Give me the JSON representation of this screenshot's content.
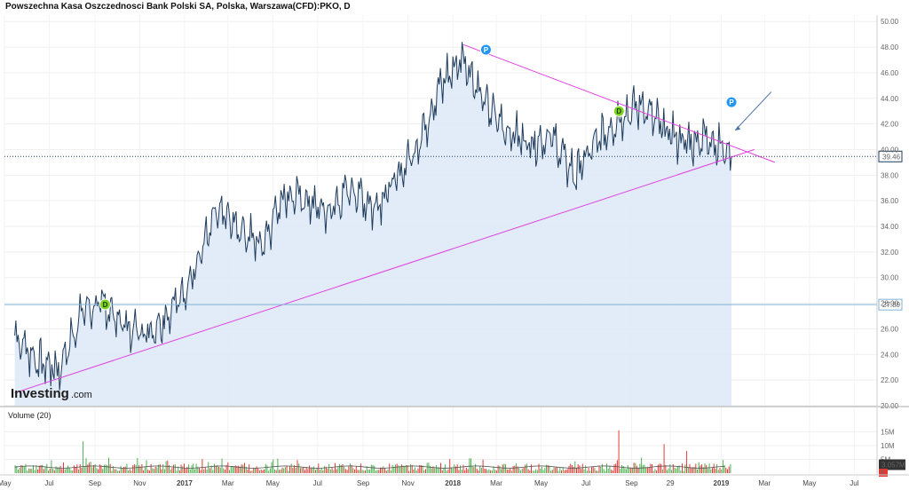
{
  "title": "Powszechna Kasa Oszczednosci Bank Polski SA, Polska, Warszawa(CFD):PKO, D",
  "logo": {
    "main": "Investing",
    "suffix": ".com"
  },
  "volume_label": "Volume (20)",
  "colors": {
    "price_line": "#1f3b5c",
    "area_fill": "#dce9f7",
    "trendline": "#e040e0",
    "current_price_line": "#1f3b5c",
    "level_line": "#7fb3d5",
    "vol_up": "#4caf50",
    "vol_down": "#e53935",
    "dividend": "#7ed321",
    "pattern": "#2196f3"
  },
  "chart_data": [
    {
      "type": "area",
      "title": "Powszechna Kasa Oszczednosci Bank Polski SA, Polska, Warszawa(CFD):PKO, D",
      "xlabel": "",
      "ylabel": "",
      "x_tick_labels": [
        "May",
        "Jul",
        "Sep",
        "Nov",
        "2017",
        "Mar",
        "May",
        "Jul",
        "Sep",
        "Nov",
        "2018",
        "Mar",
        "May",
        "Jul",
        "Sep",
        "29",
        "2019",
        "Mar",
        "May",
        "Jul"
      ],
      "y_tick_labels": [
        "20.00",
        "22.00",
        "24.00",
        "26.00",
        "28.00",
        "30.00",
        "32.00",
        "34.00",
        "36.00",
        "38.00",
        "40.00",
        "42.00",
        "44.00",
        "46.00",
        "48.00",
        "50.00"
      ],
      "ylim": [
        20,
        50.5
      ],
      "grid": true,
      "series": [
        {
          "x": [
            "2016-05",
            "2016-06",
            "2016-07",
            "2016-08",
            "2016-09",
            "2016-10",
            "2016-11",
            "2016-12",
            "2017-01",
            "2017-02",
            "2017-03",
            "2017-04",
            "2017-05",
            "2017-06",
            "2017-07",
            "2017-08",
            "2017-09",
            "2017-10",
            "2017-11",
            "2017-12",
            "2018-01",
            "2018-02",
            "2018-03",
            "2018-04",
            "2018-05",
            "2018-06",
            "2018-07",
            "2018-08",
            "2018-09",
            "2018-10",
            "2018-11",
            "2018-12",
            "2019-01"
          ],
          "values": [
            25.5,
            23.5,
            22.8,
            27.5,
            27.8,
            26.0,
            25.8,
            27.5,
            30.5,
            35.2,
            34.0,
            32.5,
            36.5,
            36.0,
            35.0,
            37.0,
            35.5,
            37.5,
            40.5,
            45.0,
            47.2,
            43.5,
            41.5,
            40.5,
            41.0,
            38.0,
            40.5,
            42.5,
            43.5,
            41.5,
            40.5,
            41.0,
            39.46
          ]
        }
      ],
      "current_price": "39.46",
      "level_price": "27.89",
      "level_value": 27.89,
      "markers": [
        {
          "kind": "dividend",
          "label": "D",
          "date": "2016-09",
          "price": 27.9
        },
        {
          "kind": "dividend",
          "label": "D",
          "date": "2018-08",
          "price": 43.0
        },
        {
          "kind": "pattern",
          "label": "P",
          "date": "2018-02",
          "price": 47.8
        },
        {
          "kind": "pattern",
          "label": "P",
          "date": "2019-01",
          "price": 43.7
        }
      ],
      "trendlines": [
        {
          "from": {
            "date": "2016-05",
            "price": 21.0
          },
          "to": {
            "date": "2019-02",
            "price": 40.0
          }
        },
        {
          "from": {
            "date": "2018-01",
            "price": 48.2
          },
          "to": {
            "date": "2019-03",
            "price": 39.0
          }
        }
      ],
      "annotation_arrow": true
    },
    {
      "type": "bar",
      "title": "Volume (20)",
      "y_tick_labels": [
        "10M",
        "15M",
        "5M"
      ],
      "current_volume": "3.057M",
      "zero_label": "0",
      "ylim": [
        0,
        18
      ],
      "spikes": [
        {
          "date": "2016-08",
          "value": 11.5,
          "direction": "up"
        },
        {
          "date": "2018-08",
          "value": 15.5,
          "direction": "down"
        },
        {
          "date": "2018-10",
          "value": 10.5,
          "direction": "down"
        },
        {
          "date": "2018-11",
          "value": 8.0,
          "direction": "down"
        },
        {
          "date": "2019-01",
          "value": 7.0,
          "direction": "up"
        }
      ],
      "typical_range": [
        0.8,
        3.5
      ]
    }
  ]
}
